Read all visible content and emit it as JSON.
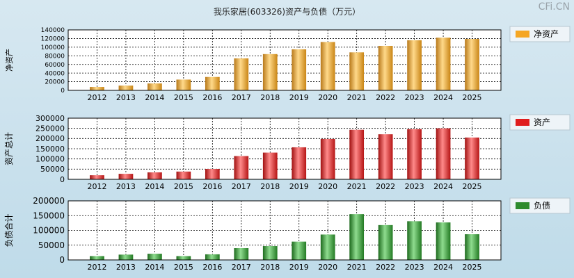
{
  "title": "我乐家居(603326)资产与负债（万元）",
  "watermark": "CFi.CN",
  "colors": {
    "equity": "#f5a623",
    "assets": "#e01d1d",
    "liabilities": "#2e8b2e"
  },
  "chart_data": [
    {
      "type": "bar",
      "title": "净资产",
      "ylabel": "净资产",
      "legend": "净资产",
      "categories": [
        "2012",
        "2013",
        "2014",
        "2015",
        "2016",
        "2017",
        "2018",
        "2019",
        "2020",
        "2021",
        "2022",
        "2023",
        "2024",
        "2025"
      ],
      "values": [
        8000,
        11000,
        16000,
        25000,
        31000,
        74000,
        84000,
        95000,
        112000,
        88000,
        103000,
        116000,
        122000,
        119000
      ],
      "ylim": [
        0,
        140000
      ],
      "yticks": [
        0,
        20000,
        40000,
        60000,
        80000,
        100000,
        120000,
        140000
      ]
    },
    {
      "type": "bar",
      "title": "资产",
      "ylabel": "资产总计",
      "legend": "资产",
      "categories": [
        "2012",
        "2013",
        "2014",
        "2015",
        "2016",
        "2017",
        "2018",
        "2019",
        "2020",
        "2021",
        "2022",
        "2023",
        "2024",
        "2025"
      ],
      "values": [
        20000,
        27000,
        34000,
        38000,
        51000,
        114000,
        131000,
        157000,
        198000,
        243000,
        221000,
        246000,
        250000,
        205000
      ],
      "ylim": [
        0,
        300000
      ],
      "yticks": [
        0,
        50000,
        100000,
        150000,
        200000,
        250000,
        300000
      ]
    },
    {
      "type": "bar",
      "title": "负债",
      "ylabel": "负债合计",
      "legend": "负债",
      "categories": [
        "2012",
        "2013",
        "2014",
        "2015",
        "2016",
        "2017",
        "2018",
        "2019",
        "2020",
        "2021",
        "2022",
        "2023",
        "2024",
        "2025"
      ],
      "values": [
        13000,
        18000,
        21000,
        13000,
        19000,
        40000,
        47000,
        62000,
        86000,
        155000,
        118000,
        131000,
        127000,
        87000
      ],
      "ylim": [
        0,
        200000
      ],
      "yticks": [
        0,
        50000,
        100000,
        150000,
        200000
      ]
    }
  ]
}
